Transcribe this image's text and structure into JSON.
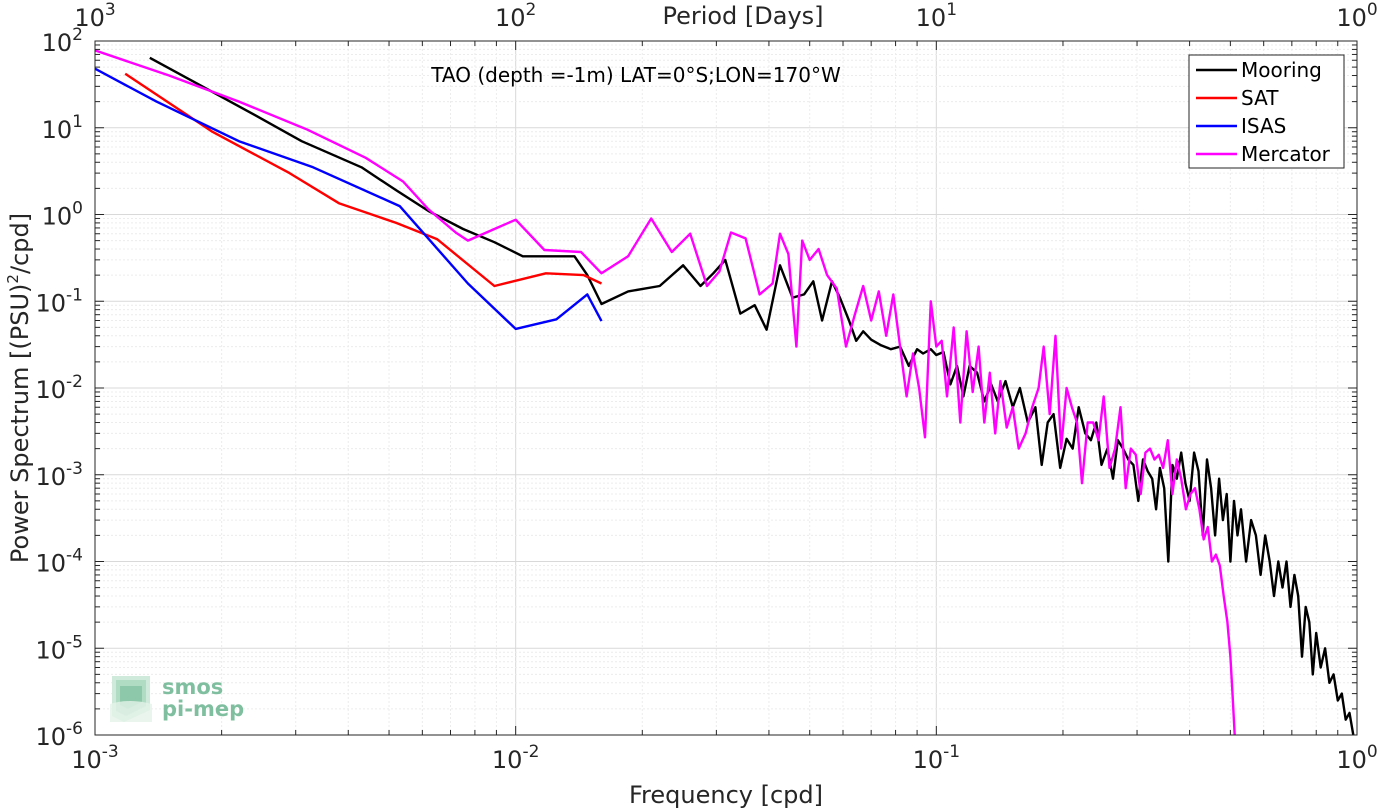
{
  "chart_data": {
    "type": "line",
    "title": "",
    "annotation": "TAO (depth =-1m) LAT=0°S;LON=170°W",
    "xlabel": "Frequency [cpd]",
    "ylabel_main": "Power Spectrum [(PSU)",
    "ylabel_sup": "2",
    "ylabel_tail": "/cpd]",
    "top_xlabel": "Period [Days]",
    "xscale": "log",
    "yscale": "log",
    "xlim": [
      0.001,
      1
    ],
    "ylim": [
      1e-06,
      100
    ],
    "grid": true,
    "legend_position": "top-right",
    "x_ticks": [
      {
        "value": 0.001,
        "base": "10",
        "exp": "-3"
      },
      {
        "value": 0.01,
        "base": "10",
        "exp": "-2"
      },
      {
        "value": 0.1,
        "base": "10",
        "exp": "-1"
      },
      {
        "value": 1,
        "base": "10",
        "exp": "0"
      }
    ],
    "y_ticks": [
      {
        "value": 100,
        "base": "10",
        "exp": "2"
      },
      {
        "value": 10,
        "base": "10",
        "exp": "1"
      },
      {
        "value": 1,
        "base": "10",
        "exp": "0"
      },
      {
        "value": 0.1,
        "base": "10",
        "exp": "-1"
      },
      {
        "value": 0.01,
        "base": "10",
        "exp": "-2"
      },
      {
        "value": 0.001,
        "base": "10",
        "exp": "-3"
      },
      {
        "value": 0.0001,
        "base": "10",
        "exp": "-4"
      },
      {
        "value": 1e-05,
        "base": "10",
        "exp": "-5"
      },
      {
        "value": 1e-06,
        "base": "10",
        "exp": "-6"
      }
    ],
    "top_ticks": [
      {
        "value": 0.001,
        "base": "10",
        "exp": "3"
      },
      {
        "value": 0.01,
        "base": "10",
        "exp": "2"
      },
      {
        "value": 0.1,
        "base": "10",
        "exp": "1"
      },
      {
        "value": 1,
        "base": "10",
        "exp": "0"
      }
    ],
    "series": [
      {
        "name": "Mooring",
        "color": "#000000",
        "points": [
          [
            0.00135,
            64
          ],
          [
            0.0018,
            30
          ],
          [
            0.0024,
            14
          ],
          [
            0.0031,
            7
          ],
          [
            0.0043,
            3.5
          ],
          [
            0.0052,
            1.9
          ],
          [
            0.0062,
            1.1
          ],
          [
            0.0075,
            0.68
          ],
          [
            0.0089,
            0.48
          ],
          [
            0.0104,
            0.33
          ],
          [
            0.0125,
            0.33
          ],
          [
            0.0138,
            0.33
          ],
          [
            0.0148,
            0.2
          ],
          [
            0.016,
            0.093
          ],
          [
            0.0185,
            0.13
          ],
          [
            0.022,
            0.15
          ],
          [
            0.025,
            0.26
          ],
          [
            0.0275,
            0.15
          ],
          [
            0.0295,
            0.21
          ],
          [
            0.0315,
            0.3
          ],
          [
            0.0342,
            0.072
          ],
          [
            0.037,
            0.09
          ],
          [
            0.0395,
            0.047
          ],
          [
            0.0425,
            0.26
          ],
          [
            0.0455,
            0.11
          ],
          [
            0.0485,
            0.12
          ],
          [
            0.051,
            0.17
          ],
          [
            0.0535,
            0.06
          ],
          [
            0.0565,
            0.17
          ],
          [
            0.059,
            0.11
          ],
          [
            0.062,
            0.06
          ],
          [
            0.0645,
            0.035
          ],
          [
            0.067,
            0.045
          ],
          [
            0.07,
            0.036
          ],
          [
            0.074,
            0.031
          ],
          [
            0.078,
            0.028
          ],
          [
            0.082,
            0.03
          ],
          [
            0.086,
            0.018
          ],
          [
            0.09,
            0.028
          ],
          [
            0.093,
            0.025
          ],
          [
            0.097,
            0.028
          ],
          [
            0.1,
            0.024
          ],
          [
            0.104,
            0.026
          ],
          [
            0.108,
            0.011
          ],
          [
            0.112,
            0.018
          ],
          [
            0.116,
            0.008
          ],
          [
            0.12,
            0.018
          ],
          [
            0.125,
            0.015
          ],
          [
            0.13,
            0.007
          ],
          [
            0.135,
            0.011
          ],
          [
            0.14,
            0.007
          ],
          [
            0.146,
            0.012
          ],
          [
            0.152,
            0.006
          ],
          [
            0.158,
            0.01
          ],
          [
            0.165,
            0.004
          ],
          [
            0.172,
            0.006
          ],
          [
            0.178,
            0.0013
          ],
          [
            0.184,
            0.004
          ],
          [
            0.19,
            0.005
          ],
          [
            0.197,
            0.0012
          ],
          [
            0.204,
            0.0026
          ],
          [
            0.211,
            0.002
          ],
          [
            0.218,
            0.006
          ],
          [
            0.226,
            0.003
          ],
          [
            0.233,
            0.0025
          ],
          [
            0.24,
            0.004
          ],
          [
            0.247,
            0.0013
          ],
          [
            0.255,
            0.002
          ],
          [
            0.263,
            0.0009
          ],
          [
            0.27,
            0.0025
          ],
          [
            0.278,
            0.002
          ],
          [
            0.286,
            0.0015
          ],
          [
            0.294,
            0.0013
          ],
          [
            0.302,
            0.0005
          ],
          [
            0.31,
            0.0015
          ],
          [
            0.318,
            0.0011
          ],
          [
            0.326,
            0.0009
          ],
          [
            0.333,
            0.0004
          ],
          [
            0.34,
            0.0012
          ],
          [
            0.348,
            0.0007
          ],
          [
            0.356,
            0.0001
          ],
          [
            0.364,
            0.0013
          ],
          [
            0.373,
            0.0009
          ],
          [
            0.382,
            0.0018
          ],
          [
            0.391,
            0.0008
          ],
          [
            0.4,
            0.0005
          ],
          [
            0.41,
            0.0018
          ],
          [
            0.42,
            0.0011
          ],
          [
            0.43,
            0.0002
          ],
          [
            0.44,
            0.0015
          ],
          [
            0.45,
            0.0007
          ],
          [
            0.46,
            0.0002
          ],
          [
            0.47,
            0.0009
          ],
          [
            0.48,
            0.0003
          ],
          [
            0.49,
            0.0006
          ],
          [
            0.5,
            0.0001
          ],
          [
            0.51,
            0.0005
          ],
          [
            0.52,
            0.0002
          ],
          [
            0.53,
            0.0004
          ],
          [
            0.545,
            0.0001
          ],
          [
            0.56,
            0.0003
          ],
          [
            0.575,
            0.0002
          ],
          [
            0.59,
            7e-05
          ],
          [
            0.605,
            0.0002
          ],
          [
            0.62,
            0.0001
          ],
          [
            0.635,
            4e-05
          ],
          [
            0.65,
            0.0001
          ],
          [
            0.665,
            5e-05
          ],
          [
            0.68,
            0.0001
          ],
          [
            0.695,
            3e-05
          ],
          [
            0.71,
            7e-05
          ],
          [
            0.725,
            4e-05
          ],
          [
            0.74,
            8e-06
          ],
          [
            0.755,
            3e-05
          ],
          [
            0.77,
            2e-05
          ],
          [
            0.785,
            5e-06
          ],
          [
            0.8,
            1.5e-05
          ],
          [
            0.82,
            6e-06
          ],
          [
            0.84,
            1e-05
          ],
          [
            0.86,
            4e-06
          ],
          [
            0.88,
            5e-06
          ],
          [
            0.9,
            2.5e-06
          ],
          [
            0.92,
            3e-06
          ],
          [
            0.94,
            1.5e-06
          ],
          [
            0.96,
            1.8e-06
          ],
          [
            0.98,
            1e-06
          ]
        ]
      },
      {
        "name": "SAT",
        "color": "#ff0000",
        "points": [
          [
            0.00118,
            42
          ],
          [
            0.0019,
            9
          ],
          [
            0.0029,
            3
          ],
          [
            0.0038,
            1.35
          ],
          [
            0.0052,
            0.8
          ],
          [
            0.0065,
            0.52
          ],
          [
            0.0089,
            0.15
          ],
          [
            0.0118,
            0.21
          ],
          [
            0.0145,
            0.2
          ],
          [
            0.016,
            0.16
          ]
        ]
      },
      {
        "name": "ISAS",
        "color": "#0000ff",
        "points": [
          [
            0.001,
            48
          ],
          [
            0.0014,
            20
          ],
          [
            0.0022,
            7
          ],
          [
            0.0033,
            3.5
          ],
          [
            0.0053,
            1.25
          ],
          [
            0.0077,
            0.16
          ],
          [
            0.01,
            0.048
          ],
          [
            0.0125,
            0.062
          ],
          [
            0.0148,
            0.12
          ],
          [
            0.016,
            0.059
          ]
        ]
      },
      {
        "name": "Mercator",
        "color": "#ff00ff",
        "points": [
          [
            0.001,
            78
          ],
          [
            0.0015,
            40
          ],
          [
            0.0022,
            20
          ],
          [
            0.0032,
            9.5
          ],
          [
            0.0044,
            4.5
          ],
          [
            0.0054,
            2.4
          ],
          [
            0.0062,
            1.15
          ],
          [
            0.0072,
            0.62
          ],
          [
            0.0077,
            0.5
          ],
          [
            0.0089,
            0.68
          ],
          [
            0.01,
            0.87
          ],
          [
            0.0117,
            0.39
          ],
          [
            0.0143,
            0.37
          ],
          [
            0.016,
            0.21
          ],
          [
            0.0185,
            0.33
          ],
          [
            0.021,
            0.9
          ],
          [
            0.0235,
            0.37
          ],
          [
            0.026,
            0.6
          ],
          [
            0.0285,
            0.15
          ],
          [
            0.0305,
            0.22
          ],
          [
            0.0325,
            0.62
          ],
          [
            0.0352,
            0.53
          ],
          [
            0.038,
            0.12
          ],
          [
            0.0408,
            0.16
          ],
          [
            0.0425,
            0.6
          ],
          [
            0.0445,
            0.35
          ],
          [
            0.0465,
            0.03
          ],
          [
            0.048,
            0.5
          ],
          [
            0.05,
            0.3
          ],
          [
            0.0525,
            0.4
          ],
          [
            0.055,
            0.2
          ],
          [
            0.058,
            0.14
          ],
          [
            0.061,
            0.03
          ],
          [
            0.064,
            0.07
          ],
          [
            0.067,
            0.15
          ],
          [
            0.07,
            0.06
          ],
          [
            0.073,
            0.13
          ],
          [
            0.076,
            0.04
          ],
          [
            0.079,
            0.12
          ],
          [
            0.082,
            0.03
          ],
          [
            0.085,
            0.008
          ],
          [
            0.088,
            0.025
          ],
          [
            0.091,
            0.01
          ],
          [
            0.094,
            0.0027
          ],
          [
            0.097,
            0.1
          ],
          [
            0.1,
            0.03
          ],
          [
            0.103,
            0.035
          ],
          [
            0.106,
            0.008
          ],
          [
            0.11,
            0.05
          ],
          [
            0.114,
            0.004
          ],
          [
            0.118,
            0.045
          ],
          [
            0.122,
            0.009
          ],
          [
            0.126,
            0.03
          ],
          [
            0.13,
            0.004
          ],
          [
            0.134,
            0.015
          ],
          [
            0.138,
            0.003
          ],
          [
            0.142,
            0.012
          ],
          [
            0.147,
            0.0035
          ],
          [
            0.152,
            0.006
          ],
          [
            0.157,
            0.002
          ],
          [
            0.163,
            0.003
          ],
          [
            0.169,
            0.006
          ],
          [
            0.175,
            0.01
          ],
          [
            0.18,
            0.03
          ],
          [
            0.186,
            0.005
          ],
          [
            0.192,
            0.04
          ],
          [
            0.198,
            0.002
          ],
          [
            0.204,
            0.01
          ],
          [
            0.21,
            0.006
          ],
          [
            0.216,
            0.004
          ],
          [
            0.222,
            0.0008
          ],
          [
            0.229,
            0.004
          ],
          [
            0.236,
            0.004
          ],
          [
            0.243,
            0.0025
          ],
          [
            0.25,
            0.008
          ],
          [
            0.258,
            0.0012
          ],
          [
            0.266,
            0.002
          ],
          [
            0.274,
            0.006
          ],
          [
            0.282,
            0.0007
          ],
          [
            0.29,
            0.002
          ],
          [
            0.298,
            0.0017
          ],
          [
            0.306,
            0.0006
          ],
          [
            0.314,
            0.0018
          ],
          [
            0.322,
            0.002
          ],
          [
            0.33,
            0.0015
          ],
          [
            0.338,
            0.0017
          ],
          [
            0.346,
            0.0012
          ],
          [
            0.355,
            0.0025
          ],
          [
            0.364,
            0.0006
          ],
          [
            0.373,
            0.0015
          ],
          [
            0.382,
            0.0009
          ],
          [
            0.392,
            0.0004
          ],
          [
            0.402,
            0.0006
          ],
          [
            0.412,
            0.0007
          ],
          [
            0.422,
            0.0004
          ],
          [
            0.432,
            0.00018
          ],
          [
            0.442,
            0.00025
          ],
          [
            0.452,
            0.0001
          ],
          [
            0.462,
            0.00012
          ],
          [
            0.472,
            9e-05
          ],
          [
            0.482,
            4e-05
          ],
          [
            0.492,
            2e-05
          ],
          [
            0.5,
            8e-06
          ],
          [
            0.506,
            3e-06
          ],
          [
            0.512,
            1e-06
          ]
        ]
      }
    ]
  },
  "logo": {
    "line1": "smos",
    "line2": "pi-mep"
  }
}
